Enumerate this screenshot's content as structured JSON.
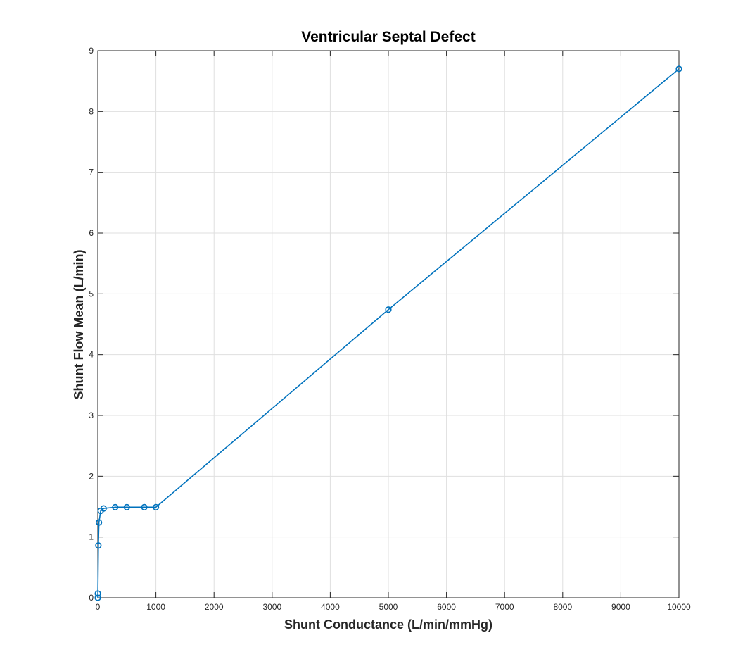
{
  "chart_data": {
    "type": "line",
    "title": "Ventricular Septal Defect",
    "xlabel": "Shunt Conductance (L/min/mmHg)",
    "ylabel": "Shunt Flow Mean (L/min)",
    "xlim": [
      0,
      10000
    ],
    "ylim": [
      0,
      9
    ],
    "xticks": [
      0,
      1000,
      2000,
      3000,
      4000,
      5000,
      6000,
      7000,
      8000,
      9000,
      10000
    ],
    "xtick_labels": [
      "0",
      "1000",
      "2000",
      "3000",
      "4000",
      "5000",
      "6000",
      "7000",
      "8000",
      "9000",
      "10000"
    ],
    "yticks": [
      0,
      1,
      2,
      3,
      4,
      5,
      6,
      7,
      8,
      9
    ],
    "ytick_labels": [
      "0",
      "1",
      "2",
      "3",
      "4",
      "5",
      "6",
      "7",
      "8",
      "9"
    ],
    "grid": true,
    "marker": "circle",
    "series": [
      {
        "color": "#0072BD",
        "x": [
          0,
          1,
          10,
          20,
          50,
          100,
          300,
          500,
          800,
          1000,
          5000,
          10000
        ],
        "y": [
          0.0,
          0.07,
          0.86,
          1.24,
          1.43,
          1.47,
          1.49,
          1.49,
          1.49,
          1.49,
          4.74,
          8.7
        ]
      }
    ]
  }
}
